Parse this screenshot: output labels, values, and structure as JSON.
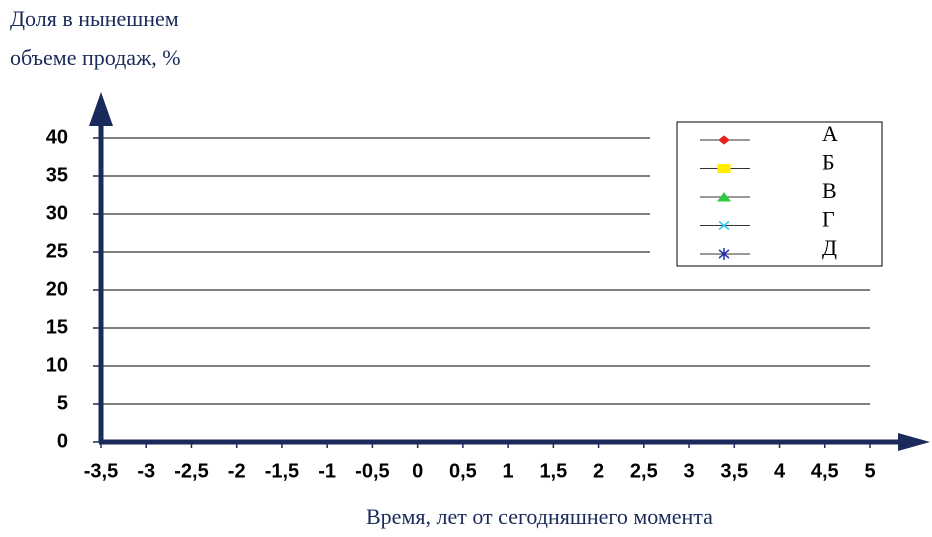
{
  "chart_data": {
    "type": "line",
    "y_label": [
      "Доля в нынешнем",
      "объеме продаж, %"
    ],
    "x_label": "Время, лет от сегодняшнего момента",
    "xlim": [
      -3.5,
      5
    ],
    "xticks": [
      {
        "value": -3.5,
        "label": "-3,5"
      },
      -3,
      {
        "value": -2.5,
        "label": "-2,5"
      },
      -2,
      {
        "value": -1.5,
        "label": "-1,5"
      },
      -1,
      {
        "value": -0.5,
        "label": "-0,5"
      },
      0,
      {
        "value": 0.5,
        "label": "0,5"
      },
      1,
      {
        "value": 1.5,
        "label": "1,5"
      },
      2,
      {
        "value": 2.5,
        "label": "2,5"
      },
      3,
      {
        "value": 3.5,
        "label": "3,5"
      },
      4,
      {
        "value": 4.5,
        "label": "4,5"
      },
      5
    ],
    "ylim": [
      0,
      40
    ],
    "yticks": [
      0,
      5,
      10,
      15,
      20,
      25,
      30,
      35,
      40
    ],
    "grid": true,
    "legend": "top-right",
    "series": [
      {
        "name": "А",
        "color": "#e8221b",
        "marker": "diamond"
      },
      {
        "name": "Б",
        "color": "#ffee00",
        "marker": "square"
      },
      {
        "name": "В",
        "color": "#2ecc40",
        "marker": "triangle"
      },
      {
        "name": "Г",
        "color": "#33ccee",
        "marker": "x"
      },
      {
        "name": "Д",
        "color": "#2233aa",
        "marker": "star"
      }
    ]
  }
}
